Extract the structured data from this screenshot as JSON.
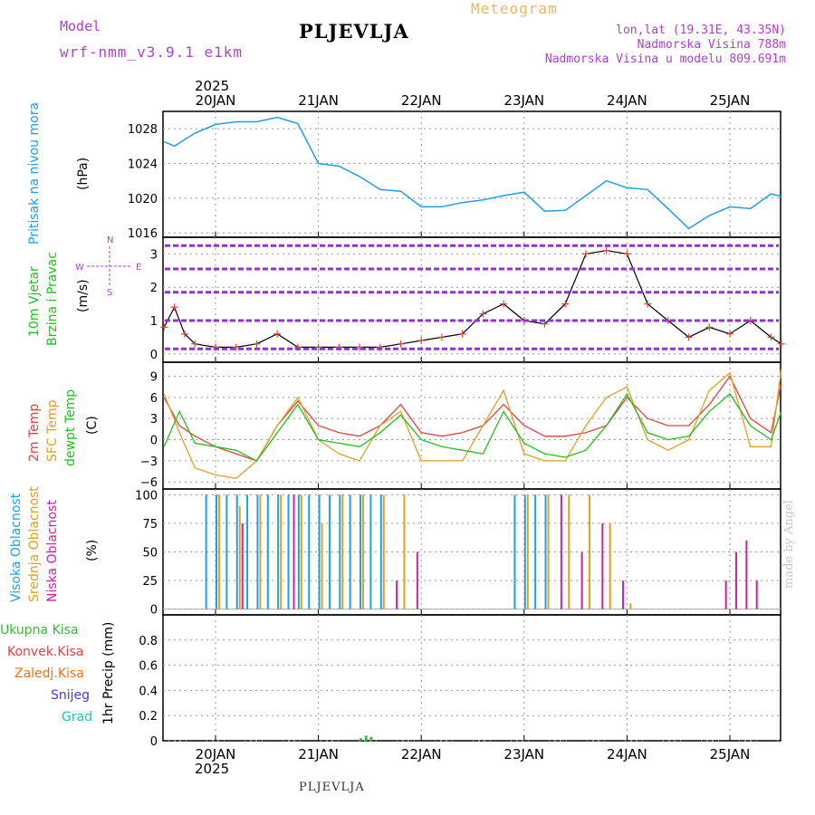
{
  "header": {
    "model_label": "Model",
    "model_name": "wrf-nmm_v3.9.1 e1km",
    "city": "PLJEVLJA",
    "meteogram_label": "Meteogram",
    "lonlat": "lon,lat (19.31E, 43.35N)",
    "elevation": "Nadmorska Visina 788m",
    "model_elevation": "Nadmorska Visina u modelu 809.691m"
  },
  "footer": {
    "city": "PLJEVLJA",
    "credit": "made by Angel"
  },
  "x_axis": {
    "year": "2025",
    "days": [
      "20JAN",
      "21JAN",
      "22JAN",
      "23JAN",
      "24JAN",
      "25JAN"
    ]
  },
  "colors": {
    "pressure": "#1ea0e8",
    "temp2m": "#e84040",
    "sfc": "#e0a020",
    "dewpt": "#20c020",
    "visoka": "#1ea0e8",
    "srednja": "#e0a020",
    "niska": "#d020a0",
    "ukupna": "#30c030",
    "konvek": "#e84040",
    "zaledj": "#f07020",
    "snijeg": "#4040e0",
    "grad": "#20c0c0",
    "purple": "#b040d0"
  },
  "panels": {
    "pressure": {
      "ylabel": "Pritisak na nivou mora",
      "unit": "(hPa)"
    },
    "wind": {
      "label1": "10m Vjetar",
      "label2": "Brzina i Pravac",
      "unit": "(m/s)",
      "compass": {
        "w": "W",
        "e": "E",
        "n": "N",
        "s": "S"
      }
    },
    "temp": {
      "label1": "2m Temp",
      "label2": "SFC Temp",
      "label3": "dewpt Temp",
      "unit": "(C)"
    },
    "cloud": {
      "label1": "Visoka Oblacnost",
      "label2": "Srednja Oblacnost",
      "label3": "Niska Oblacnost",
      "unit": "(%)"
    },
    "precip": {
      "unit": "1hr Precip (mm)",
      "legend": [
        "Ukupna Kisa",
        "Konvek.Kisa",
        "Zaledj.Kisa",
        "Snijeg",
        "Grad"
      ]
    }
  },
  "chart_data": [
    {
      "type": "line",
      "name": "pressure",
      "ylim": [
        1015.5,
        1030
      ],
      "yticks": [
        1016,
        1020,
        1024,
        1028
      ],
      "x_days": [
        0,
        0.1,
        0.3,
        0.5,
        0.7,
        0.9,
        1.1,
        1.3,
        1.5,
        1.7,
        1.9,
        2.1,
        2.3,
        2.5,
        2.7,
        2.9,
        3.1,
        3.3,
        3.5,
        3.7,
        3.9,
        4.1,
        4.3,
        4.5,
        4.7,
        4.9,
        5.1,
        5.3,
        5.5,
        5.7,
        5.9,
        6.0
      ],
      "values": [
        1026.5,
        1026,
        1027.5,
        1028.5,
        1028.8,
        1028.8,
        1029.3,
        1028.6,
        1024,
        1023.7,
        1022.5,
        1021,
        1020.8,
        1019,
        1019,
        1019.5,
        1019.8,
        1020.3,
        1020.7,
        1018.5,
        1018.6,
        1020.3,
        1022,
        1021.2,
        1021,
        1018.8,
        1016.5,
        1018,
        1019,
        1018.8,
        1020.5,
        1020.2
      ],
      "title": ""
    },
    {
      "type": "line",
      "name": "wind",
      "ylim": [
        -0.25,
        3.5
      ],
      "yticks": [
        0,
        1,
        2,
        3
      ],
      "x_days": [
        0,
        0.1,
        0.2,
        0.3,
        0.5,
        0.7,
        0.9,
        1.1,
        1.3,
        1.5,
        1.7,
        1.9,
        2.1,
        2.3,
        2.5,
        2.7,
        2.9,
        3.1,
        3.3,
        3.5,
        3.7,
        3.9,
        4.1,
        4.3,
        4.5,
        4.7,
        4.9,
        5.1,
        5.3,
        5.5,
        5.7,
        5.9,
        6.0
      ],
      "values": [
        0.8,
        1.4,
        0.6,
        0.3,
        0.2,
        0.2,
        0.3,
        0.6,
        0.2,
        0.2,
        0.2,
        0.2,
        0.2,
        0.3,
        0.4,
        0.5,
        0.6,
        1.2,
        1.5,
        1.0,
        0.9,
        1.5,
        3.0,
        3.1,
        3.0,
        1.5,
        1.0,
        0.5,
        0.8,
        0.6,
        1.0,
        0.5,
        0.3
      ]
    },
    {
      "type": "line",
      "name": "temperature",
      "ylim": [
        -7,
        11
      ],
      "yticks": [
        -6,
        -3,
        0,
        3,
        6,
        9
      ],
      "x_days": [
        0,
        0.15,
        0.3,
        0.5,
        0.7,
        0.9,
        1.1,
        1.3,
        1.5,
        1.7,
        1.9,
        2.1,
        2.3,
        2.5,
        2.7,
        2.9,
        3.1,
        3.3,
        3.5,
        3.7,
        3.9,
        4.1,
        4.3,
        4.5,
        4.7,
        4.9,
        5.1,
        5.3,
        5.5,
        5.7,
        5.9,
        6.0
      ],
      "series": [
        {
          "name": "2m Temp",
          "values": [
            6,
            2,
            0.5,
            -1,
            -2,
            -3,
            2,
            5.5,
            2,
            1,
            0.5,
            2,
            5,
            1,
            0.5,
            1,
            2,
            5,
            2,
            0.5,
            0.5,
            1,
            2,
            6,
            3,
            2,
            2,
            5,
            9,
            3,
            1,
            8
          ]
        },
        {
          "name": "SFC Temp",
          "values": [
            6.5,
            1,
            -4,
            -5,
            -5.5,
            -3,
            2,
            6,
            0,
            -2,
            -3,
            2,
            4,
            -3,
            -3,
            -3,
            2,
            7,
            -2,
            -3,
            -3,
            2,
            6,
            7.5,
            0,
            -1.5,
            0,
            7,
            9.5,
            -1,
            -1,
            10
          ]
        },
        {
          "name": "dewpt Temp",
          "values": [
            -1,
            4,
            -0.5,
            -1,
            -1.5,
            -3,
            1,
            5,
            0,
            -0.5,
            -1,
            1,
            3.5,
            0,
            -1,
            -1.5,
            -2,
            4,
            -0.5,
            -2,
            -2.5,
            -1.5,
            2,
            6.5,
            1,
            0,
            0.5,
            4,
            6.5,
            2,
            0,
            4
          ]
        }
      ]
    },
    {
      "type": "bar",
      "name": "cloud cover",
      "ylim": [
        -5,
        105
      ],
      "yticks": [
        0,
        25,
        50,
        75,
        100
      ],
      "series": [
        {
          "name": "Visoka Oblacnost",
          "x_days": [
            0.4,
            0.5,
            0.6,
            0.7,
            0.8,
            0.9,
            1.0,
            1.1,
            1.2,
            1.3,
            1.4,
            1.5,
            1.6,
            1.7,
            1.8,
            1.9,
            2.0,
            2.1,
            3.4,
            3.5,
            3.6,
            3.7
          ],
          "values": [
            100,
            100,
            100,
            100,
            100,
            100,
            100,
            100,
            100,
            100,
            100,
            100,
            100,
            100,
            100,
            100,
            100,
            100,
            100,
            100,
            100,
            100
          ]
        },
        {
          "name": "Srednja Oblacnost",
          "x_days": [
            0.5,
            0.7,
            0.9,
            1.1,
            1.3,
            1.5,
            1.7,
            1.9,
            2.1,
            2.3,
            3.5,
            3.7,
            3.9,
            4.1,
            4.3,
            4.5
          ],
          "values": [
            100,
            90,
            100,
            100,
            100,
            75,
            100,
            100,
            100,
            100,
            100,
            100,
            100,
            100,
            75,
            5
          ]
        },
        {
          "name": "Niska Oblacnost",
          "x_days": [
            0.7,
            1.2,
            2.2,
            2.4,
            3.8,
            4.0,
            4.2,
            4.4,
            5.4,
            5.5,
            5.6,
            5.7
          ],
          "values": [
            75,
            100,
            25,
            50,
            100,
            50,
            75,
            25,
            25,
            50,
            60,
            25
          ]
        }
      ]
    },
    {
      "type": "bar",
      "name": "precipitation",
      "ylim": [
        0,
        1
      ],
      "yticks": [
        0,
        0.2,
        0.4,
        0.6,
        0.8
      ],
      "series": [
        {
          "name": "Ukupna Kisa",
          "x_days": [
            1.9,
            1.95,
            2.0
          ],
          "values": [
            0.02,
            0.04,
            0.03
          ]
        }
      ]
    }
  ]
}
